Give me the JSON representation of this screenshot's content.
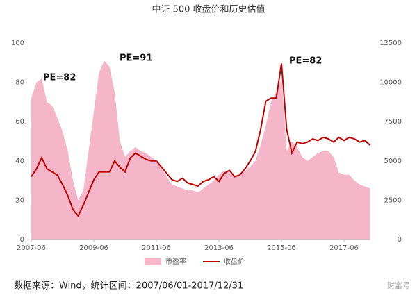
{
  "chart_data": {
    "type": "area-line",
    "title": "中证 500 收盘价和历史估值",
    "categories": [
      "2007-06",
      null,
      null,
      null,
      null,
      null,
      null,
      null,
      null,
      null,
      null,
      null,
      "2009-06",
      null,
      null,
      null,
      null,
      null,
      null,
      null,
      null,
      null,
      null,
      null,
      "2011-06",
      null,
      null,
      null,
      null,
      null,
      null,
      null,
      null,
      null,
      null,
      null,
      "2013-06",
      null,
      null,
      null,
      null,
      null,
      null,
      null,
      null,
      null,
      null,
      null,
      "2015-06",
      null,
      null,
      null,
      null,
      null,
      null,
      null,
      null,
      null,
      null,
      null,
      "2017-06",
      null,
      null,
      null,
      null,
      null
    ],
    "series": [
      {
        "name": "市盈率",
        "kind": "area",
        "axis": "y",
        "color": "#f4b6c8",
        "values": [
          72,
          80,
          82,
          70,
          68,
          62,
          55,
          45,
          30,
          20,
          25,
          45,
          65,
          85,
          91,
          88,
          75,
          50,
          42,
          45,
          47,
          45,
          44,
          42,
          40,
          36,
          32,
          28,
          27,
          26,
          25,
          25,
          24,
          26,
          28,
          30,
          33,
          35,
          34,
          32,
          33,
          35,
          37,
          40,
          48,
          58,
          70,
          75,
          82,
          45,
          50,
          47,
          42,
          40,
          42,
          44,
          45,
          45,
          42,
          34,
          33,
          33,
          30,
          28,
          27,
          26
        ]
      },
      {
        "name": "收盘价",
        "kind": "line",
        "axis": "y2",
        "color": "#c00000",
        "values": [
          4000,
          4500,
          5200,
          4500,
          4300,
          4100,
          3500,
          2800,
          1900,
          1500,
          2200,
          3000,
          3800,
          4300,
          4300,
          4300,
          5000,
          4600,
          4300,
          5200,
          5500,
          5300,
          5100,
          5000,
          5000,
          4600,
          4200,
          3800,
          3700,
          3900,
          3600,
          3500,
          3400,
          3700,
          3800,
          4000,
          3700,
          4200,
          4400,
          4000,
          4100,
          4500,
          5000,
          5600,
          7000,
          8800,
          9000,
          9000,
          11200,
          7000,
          5500,
          6200,
          6100,
          6200,
          6400,
          6300,
          6500,
          6400,
          6200,
          6500,
          6300,
          6500,
          6400,
          6200,
          6300,
          6000
        ]
      }
    ],
    "ylim": [
      0,
      100
    ],
    "yticks": [
      0,
      20,
      40,
      60,
      80,
      100
    ],
    "y2lim": [
      0,
      12500
    ],
    "y2ticks": [
      0,
      2500,
      5000,
      7500,
      10000,
      12500
    ],
    "grid": false,
    "legend": "bottom",
    "annotations": [
      "PE=82",
      "PE=91",
      "PE=82"
    ]
  },
  "footer": {
    "source": "数据来源：Wind，统计区间：2007/06/01-2017/12/31",
    "watermark": "财富号"
  }
}
